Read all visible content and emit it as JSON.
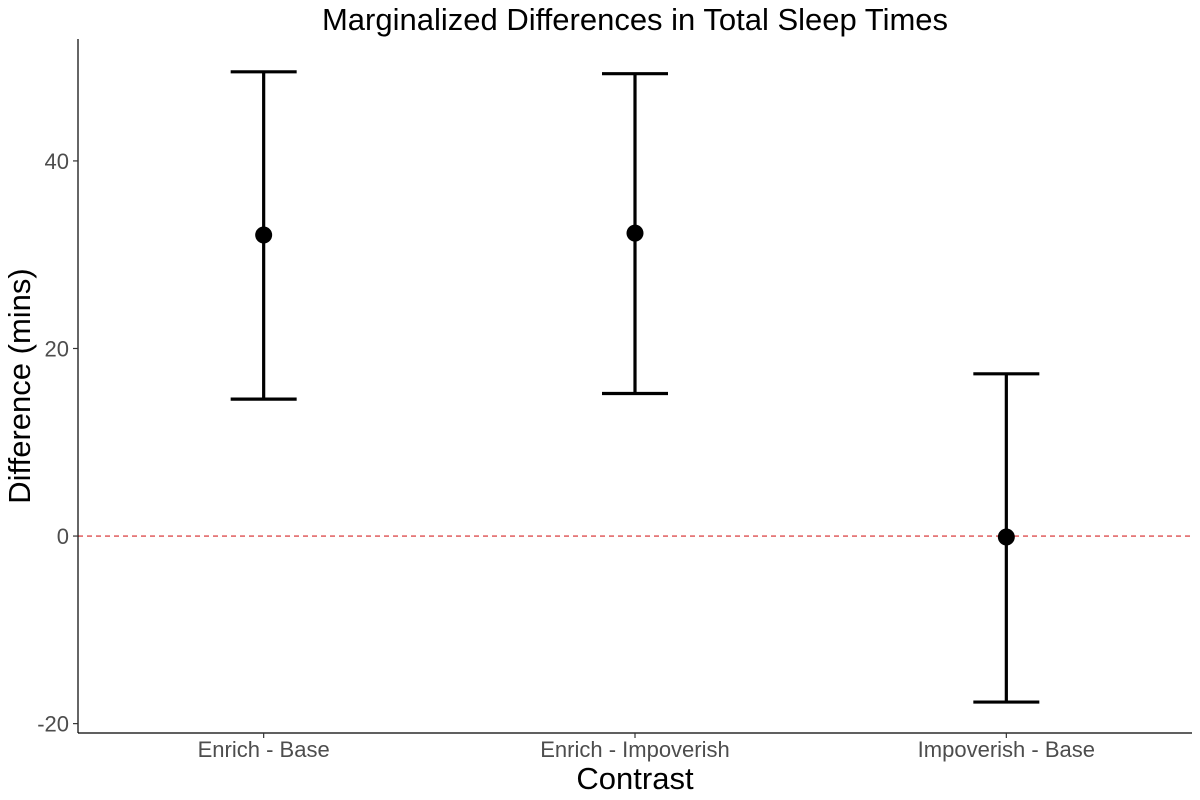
{
  "chart_data": {
    "type": "scatter",
    "subtype": "point-with-error-bars",
    "title": "Marginalized Differences in Total Sleep Times",
    "xlabel": "Contrast",
    "ylabel": "Difference (mins)",
    "categories": [
      "Enrich - Base",
      "Enrich - Impoverish",
      "Impoverish - Base"
    ],
    "estimates": [
      32.1,
      32.3,
      -0.1
    ],
    "lower": [
      14.6,
      15.2,
      -17.7
    ],
    "upper": [
      49.5,
      49.3,
      17.3
    ],
    "ylim": [
      -21,
      53
    ],
    "yticks": [
      -20,
      0,
      20,
      40
    ],
    "ytick_labels": [
      "-20",
      "0",
      "20",
      "40"
    ],
    "reference_line": {
      "y": 0,
      "style": "dashed",
      "color": "#d62728"
    },
    "grid": false,
    "legend": "none",
    "colors": {
      "points": "#000000",
      "error_bars": "#000000",
      "axis": "#000000",
      "tick_text": "#4d4d4d"
    }
  }
}
